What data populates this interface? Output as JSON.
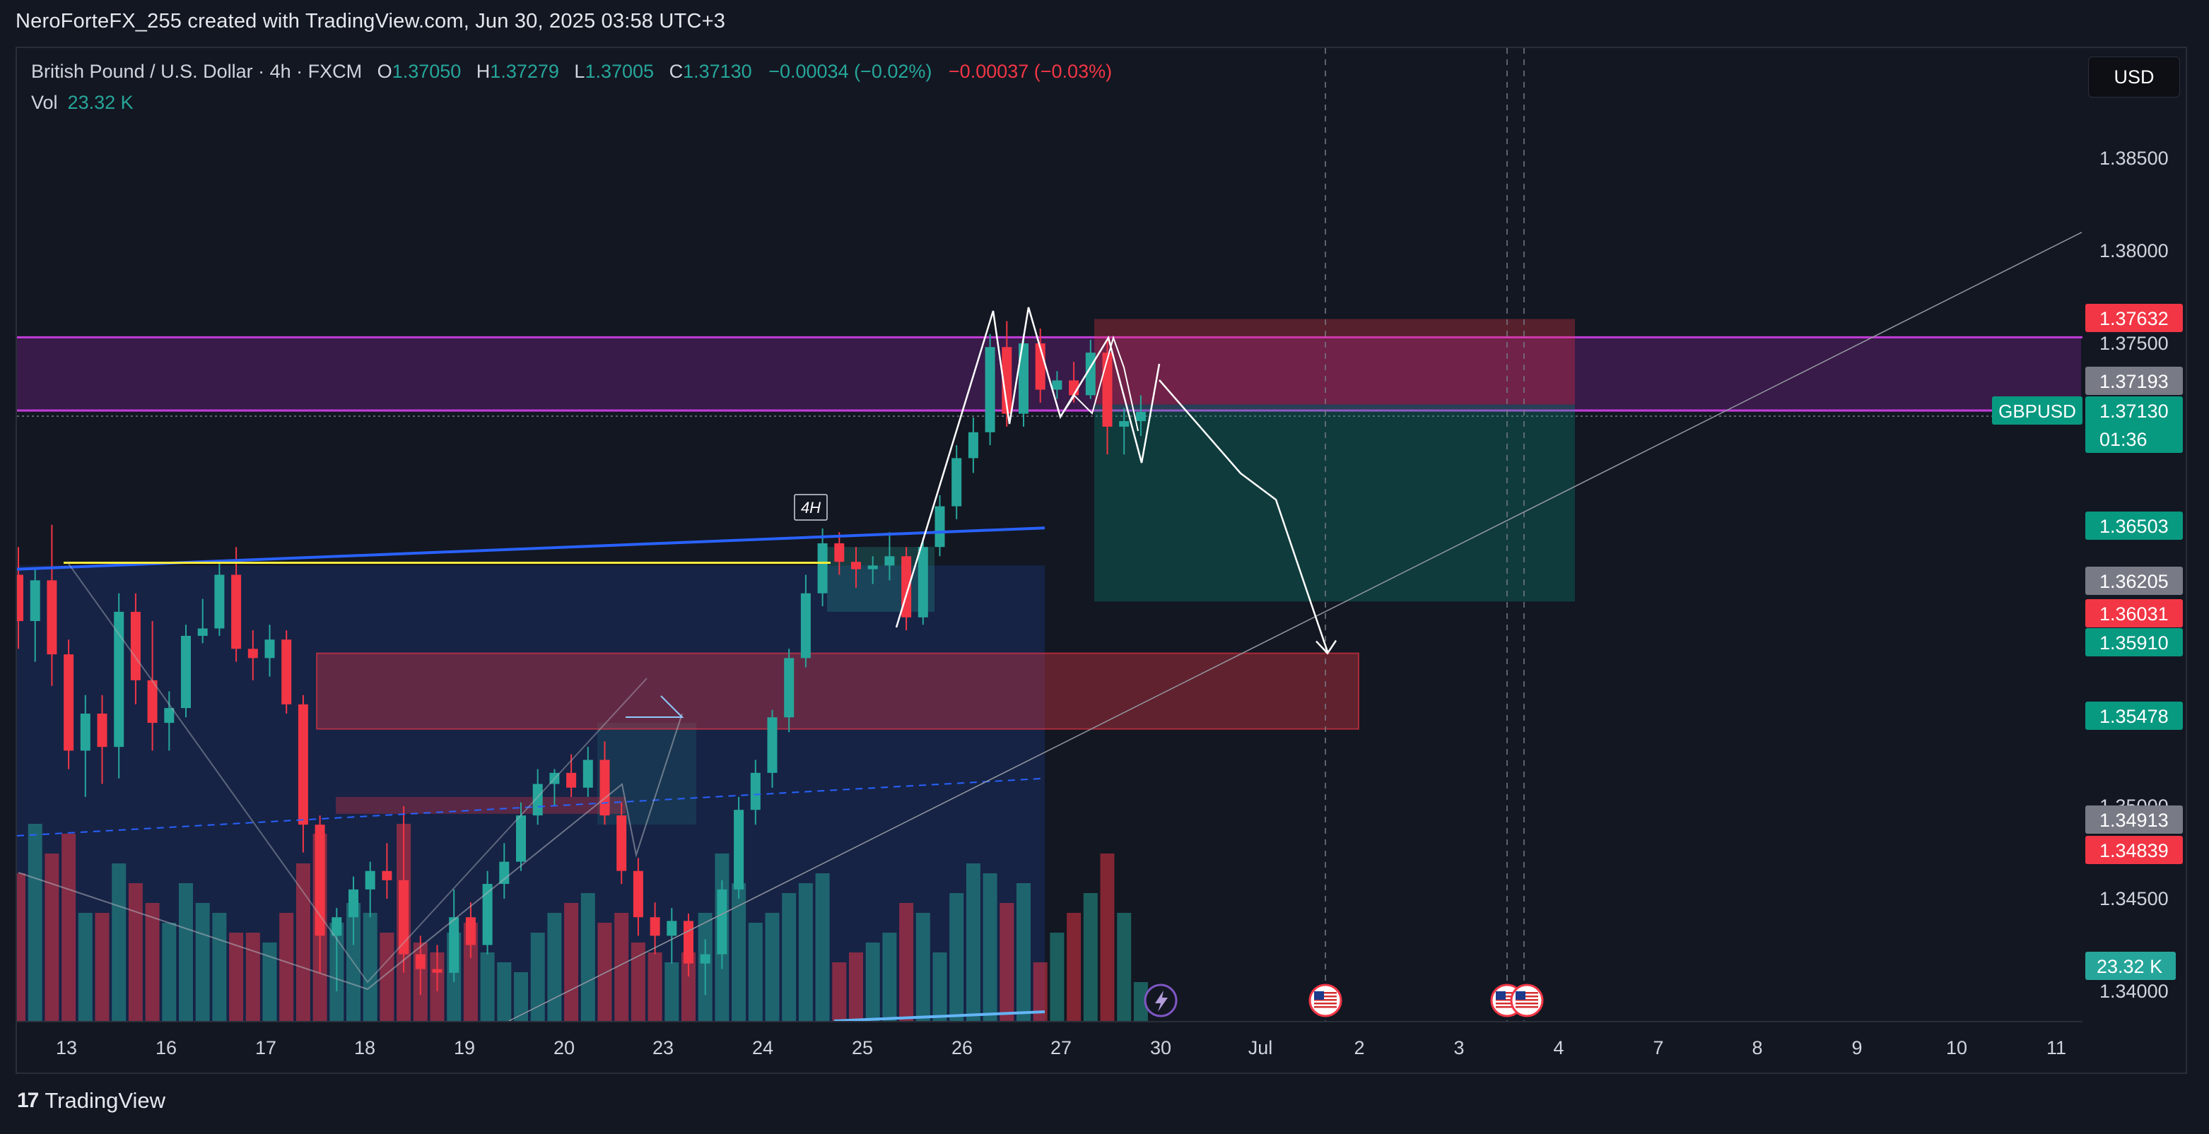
{
  "caption": "NeroForteFX_255 created with TradingView.com, Jun 30, 2025 03:58 UTC+3",
  "legend": {
    "symbol": "British Pound / U.S. Dollar · 4h · FXCM",
    "open_label": "O",
    "open": "1.37050",
    "high_label": "H",
    "high": "1.37279",
    "low_label": "L",
    "low": "1.37005",
    "close_label": "C",
    "close": "1.37130",
    "change_up": "−0.00034 (−0.02%)",
    "change_down": "−0.00037 (−0.03%)",
    "vol_label": "Vol",
    "vol_value": "23.32 K"
  },
  "currency_button": "USD",
  "footer_brand": "TradingView",
  "colors": {
    "up": "#26a69a",
    "down": "#f23645",
    "background": "#131722",
    "purple_zone": "#9c27b0",
    "trendline": "#2962ff",
    "yellow_line": "#ffeb3b"
  },
  "chart_data": {
    "type": "candlestick",
    "symbol": "GBPUSD",
    "interval": "4h",
    "y_range": [
      1.3385,
      1.389
    ],
    "y_ticks": [
      "1.38500",
      "1.38000",
      "1.37500",
      "1.35000",
      "1.34500",
      "1.34000"
    ],
    "x_labels": [
      "13",
      "16",
      "17",
      "18",
      "19",
      "20",
      "23",
      "24",
      "25",
      "26",
      "27",
      "30",
      "Jul",
      "2",
      "3",
      "4",
      "7",
      "8",
      "9",
      "10",
      "11"
    ],
    "price_tags": [
      {
        "value": "1.37632",
        "color": "#f23645"
      },
      {
        "value": "1.37193",
        "color": "#787b86"
      },
      {
        "value": "1.37130",
        "color": "#089981",
        "symbol": "GBPUSD",
        "countdown": "01:36"
      },
      {
        "value": "1.36503",
        "color": "#089981"
      },
      {
        "value": "1.36205",
        "color": "#787b86"
      },
      {
        "value": "1.36031",
        "color": "#f23645"
      },
      {
        "value": "1.35910",
        "color": "#089981"
      },
      {
        "value": "1.35478",
        "color": "#089981"
      },
      {
        "value": "1.34913",
        "color": "#787b86"
      },
      {
        "value": "1.34839",
        "color": "#f23645"
      }
    ],
    "volume_tag": "23.32 K",
    "timeframe_label": "4H",
    "candles": [
      {
        "o": 1.3625,
        "h": 1.364,
        "l": 1.3585,
        "c": 1.36
      },
      {
        "o": 1.36,
        "h": 1.3628,
        "l": 1.3578,
        "c": 1.3622
      },
      {
        "o": 1.3622,
        "h": 1.3652,
        "l": 1.3565,
        "c": 1.3582
      },
      {
        "o": 1.3582,
        "h": 1.359,
        "l": 1.352,
        "c": 1.353
      },
      {
        "o": 1.353,
        "h": 1.356,
        "l": 1.3505,
        "c": 1.355
      },
      {
        "o": 1.355,
        "h": 1.356,
        "l": 1.3512,
        "c": 1.3532
      },
      {
        "o": 1.3532,
        "h": 1.3615,
        "l": 1.3515,
        "c": 1.3605
      },
      {
        "o": 1.3605,
        "h": 1.3615,
        "l": 1.3555,
        "c": 1.3568
      },
      {
        "o": 1.3568,
        "h": 1.36,
        "l": 1.353,
        "c": 1.3545
      },
      {
        "o": 1.3545,
        "h": 1.3562,
        "l": 1.353,
        "c": 1.3553
      },
      {
        "o": 1.3553,
        "h": 1.3598,
        "l": 1.3548,
        "c": 1.3592
      },
      {
        "o": 1.3592,
        "h": 1.3612,
        "l": 1.3588,
        "c": 1.3596
      },
      {
        "o": 1.3596,
        "h": 1.3632,
        "l": 1.3592,
        "c": 1.3625
      },
      {
        "o": 1.3625,
        "h": 1.364,
        "l": 1.3578,
        "c": 1.3585
      },
      {
        "o": 1.3585,
        "h": 1.3595,
        "l": 1.3568,
        "c": 1.358
      },
      {
        "o": 1.358,
        "h": 1.3598,
        "l": 1.357,
        "c": 1.359
      },
      {
        "o": 1.359,
        "h": 1.3595,
        "l": 1.355,
        "c": 1.3555
      },
      {
        "o": 1.3555,
        "h": 1.356,
        "l": 1.3475,
        "c": 1.349
      },
      {
        "o": 1.349,
        "h": 1.3495,
        "l": 1.341,
        "c": 1.343
      },
      {
        "o": 1.343,
        "h": 1.3445,
        "l": 1.34,
        "c": 1.344
      },
      {
        "o": 1.344,
        "h": 1.3462,
        "l": 1.3425,
        "c": 1.3455
      },
      {
        "o": 1.3455,
        "h": 1.347,
        "l": 1.344,
        "c": 1.3465
      },
      {
        "o": 1.3465,
        "h": 1.348,
        "l": 1.345,
        "c": 1.346
      },
      {
        "o": 1.346,
        "h": 1.35,
        "l": 1.341,
        "c": 1.342
      },
      {
        "o": 1.342,
        "h": 1.343,
        "l": 1.3398,
        "c": 1.3412
      },
      {
        "o": 1.3412,
        "h": 1.3425,
        "l": 1.34,
        "c": 1.341
      },
      {
        "o": 1.341,
        "h": 1.3455,
        "l": 1.3405,
        "c": 1.344
      },
      {
        "o": 1.344,
        "h": 1.3448,
        "l": 1.3418,
        "c": 1.3425
      },
      {
        "o": 1.3425,
        "h": 1.3465,
        "l": 1.342,
        "c": 1.3458
      },
      {
        "o": 1.3458,
        "h": 1.348,
        "l": 1.345,
        "c": 1.347
      },
      {
        "o": 1.347,
        "h": 1.3502,
        "l": 1.3465,
        "c": 1.3495
      },
      {
        "o": 1.3495,
        "h": 1.352,
        "l": 1.349,
        "c": 1.3512
      },
      {
        "o": 1.3512,
        "h": 1.352,
        "l": 1.35,
        "c": 1.3518
      },
      {
        "o": 1.3518,
        "h": 1.3528,
        "l": 1.3505,
        "c": 1.351
      },
      {
        "o": 1.351,
        "h": 1.3532,
        "l": 1.3505,
        "c": 1.3525
      },
      {
        "o": 1.3525,
        "h": 1.3535,
        "l": 1.349,
        "c": 1.3495
      },
      {
        "o": 1.3495,
        "h": 1.3502,
        "l": 1.3458,
        "c": 1.3465
      },
      {
        "o": 1.3465,
        "h": 1.3472,
        "l": 1.343,
        "c": 1.344
      },
      {
        "o": 1.344,
        "h": 1.3448,
        "l": 1.342,
        "c": 1.343
      },
      {
        "o": 1.343,
        "h": 1.3445,
        "l": 1.3415,
        "c": 1.3438
      },
      {
        "o": 1.3438,
        "h": 1.3442,
        "l": 1.3408,
        "c": 1.3415
      },
      {
        "o": 1.3415,
        "h": 1.3428,
        "l": 1.3398,
        "c": 1.342
      },
      {
        "o": 1.342,
        "h": 1.346,
        "l": 1.3412,
        "c": 1.3455
      },
      {
        "o": 1.3455,
        "h": 1.3505,
        "l": 1.345,
        "c": 1.3498
      },
      {
        "o": 1.3498,
        "h": 1.3525,
        "l": 1.349,
        "c": 1.3518
      },
      {
        "o": 1.3518,
        "h": 1.3552,
        "l": 1.351,
        "c": 1.3548
      },
      {
        "o": 1.3548,
        "h": 1.3585,
        "l": 1.354,
        "c": 1.358
      },
      {
        "o": 1.358,
        "h": 1.3625,
        "l": 1.3575,
        "c": 1.3615
      },
      {
        "o": 1.3615,
        "h": 1.365,
        "l": 1.3608,
        "c": 1.3642
      },
      {
        "o": 1.3642,
        "h": 1.3648,
        "l": 1.3625,
        "c": 1.3632
      },
      {
        "o": 1.3632,
        "h": 1.364,
        "l": 1.3618,
        "c": 1.3628
      },
      {
        "o": 1.3628,
        "h": 1.3635,
        "l": 1.362,
        "c": 1.363
      },
      {
        "o": 1.363,
        "h": 1.3648,
        "l": 1.3622,
        "c": 1.3635
      },
      {
        "o": 1.3635,
        "h": 1.364,
        "l": 1.3595,
        "c": 1.3602
      },
      {
        "o": 1.3602,
        "h": 1.3645,
        "l": 1.3598,
        "c": 1.364
      },
      {
        "o": 1.364,
        "h": 1.3668,
        "l": 1.3635,
        "c": 1.3662
      },
      {
        "o": 1.3662,
        "h": 1.3695,
        "l": 1.3655,
        "c": 1.3688
      },
      {
        "o": 1.3688,
        "h": 1.371,
        "l": 1.368,
        "c": 1.3702
      },
      {
        "o": 1.3702,
        "h": 1.3755,
        "l": 1.3695,
        "c": 1.3748
      },
      {
        "o": 1.3748,
        "h": 1.3762,
        "l": 1.3705,
        "c": 1.3712
      },
      {
        "o": 1.3712,
        "h": 1.3755,
        "l": 1.3705,
        "c": 1.375
      },
      {
        "o": 1.375,
        "h": 1.3758,
        "l": 1.3718,
        "c": 1.3725
      },
      {
        "o": 1.3725,
        "h": 1.3735,
        "l": 1.372,
        "c": 1.373
      },
      {
        "o": 1.373,
        "h": 1.374,
        "l": 1.3718,
        "c": 1.3722
      },
      {
        "o": 1.3722,
        "h": 1.3752,
        "l": 1.372,
        "c": 1.3745
      },
      {
        "o": 1.3745,
        "h": 1.3752,
        "l": 1.369,
        "c": 1.3705
      },
      {
        "o": 1.3705,
        "h": 1.3715,
        "l": 1.369,
        "c": 1.3708
      },
      {
        "o": 1.3708,
        "h": 1.3722,
        "l": 1.37,
        "c": 1.3713
      }
    ],
    "volumes": [
      0.75,
      1.0,
      0.85,
      0.95,
      0.55,
      0.55,
      0.8,
      0.7,
      0.6,
      0.5,
      0.7,
      0.6,
      0.55,
      0.45,
      0.45,
      0.4,
      0.55,
      0.8,
      0.95,
      0.5,
      0.6,
      0.55,
      0.45,
      1.0,
      0.4,
      0.35,
      0.45,
      0.5,
      0.35,
      0.3,
      0.25,
      0.45,
      0.55,
      0.6,
      0.65,
      0.5,
      0.55,
      0.4,
      0.35,
      0.3,
      0.35,
      0.55,
      0.85,
      0.7,
      0.5,
      0.55,
      0.65,
      0.7,
      0.75,
      0.3,
      0.35,
      0.4,
      0.45,
      0.6,
      0.55,
      0.35,
      0.65,
      0.8,
      0.75,
      0.6,
      0.7,
      0.3,
      0.45,
      0.55,
      0.65,
      0.85,
      0.55,
      0.2
    ],
    "purple_zone": {
      "top": 1.37632,
      "bottom": 1.3713
    },
    "red_zone": {
      "top": 1.3591,
      "bottom": 1.35478
    },
    "short_position": {
      "entry": 1.37193,
      "stop": 1.37632,
      "target": 1.36205
    },
    "trendline": {
      "start": 1.3628,
      "end": 1.36503
    },
    "yellow_level": 1.36315,
    "projection": [
      1.37302,
      1.3697,
      1.36503,
      1.3675,
      1.3591
    ]
  }
}
